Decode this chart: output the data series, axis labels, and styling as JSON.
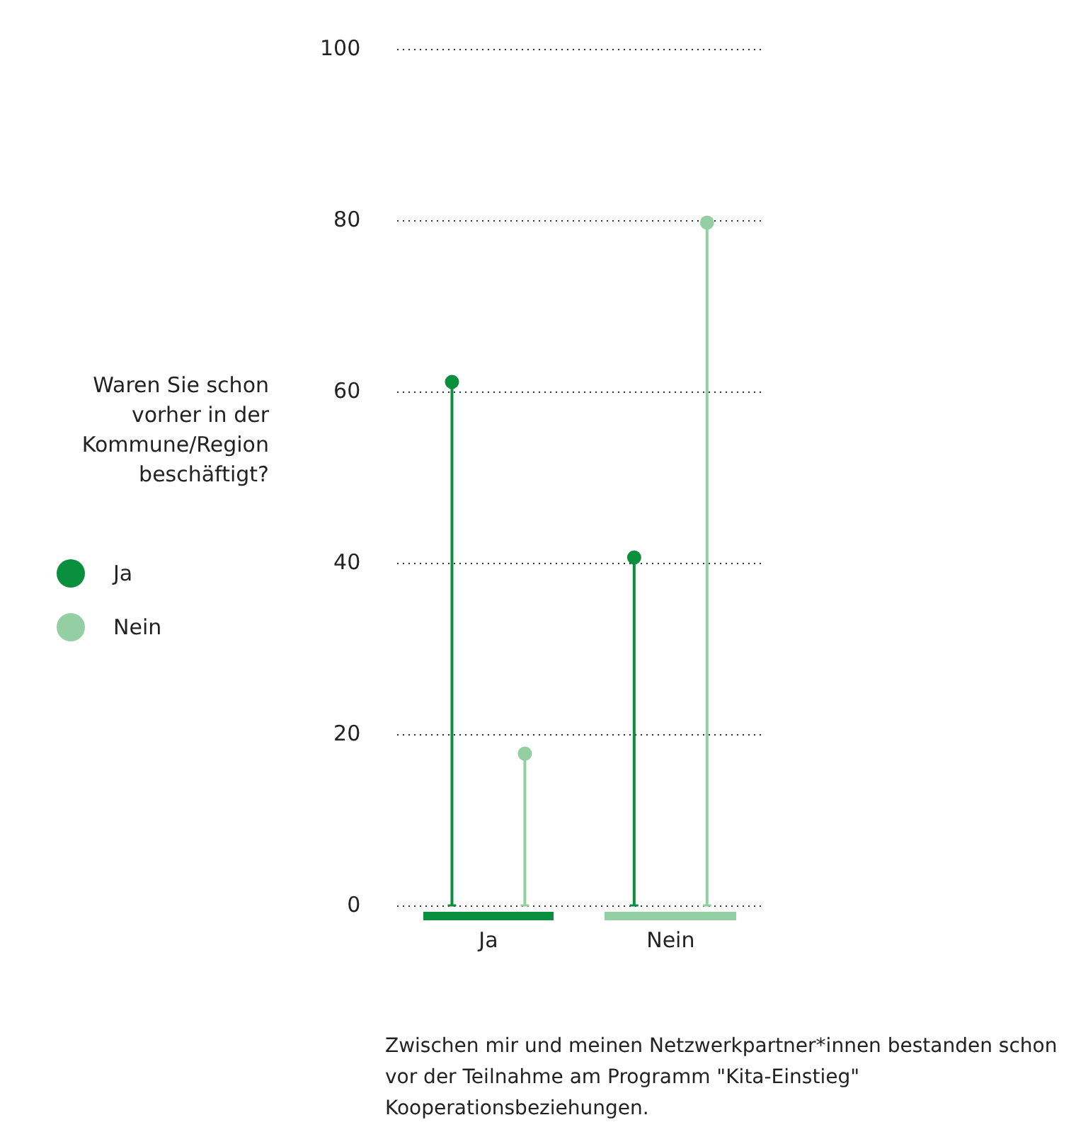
{
  "chart_data": {
    "type": "lollipop",
    "xlabel": "Zwischen mir und meinen Netzwerkpartner*innen bestanden schon vor der Teilnahme am Programm \"Kita-Einstieg\" Kooperationsbeziehungen.",
    "legend_title": "Waren Sie schon vorher in der Kommune/Region beschäftigt?",
    "categories": [
      "Ja",
      "Nein"
    ],
    "series": [
      {
        "name": "Ja",
        "color": "#0a8f3e",
        "values": [
          61.2,
          40.7
        ]
      },
      {
        "name": "Nein",
        "color": "#94cfa4",
        "values": [
          17.8,
          79.8
        ]
      }
    ],
    "ylim": [
      0,
      100
    ],
    "yticks": [
      0,
      20,
      40,
      60,
      80,
      100
    ],
    "grid": "y",
    "legend": "left",
    "marker": "circle"
  }
}
